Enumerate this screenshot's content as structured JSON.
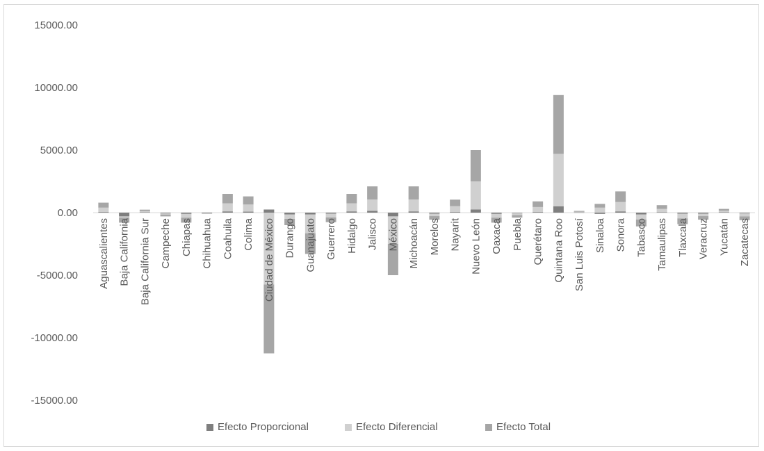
{
  "chart_data": {
    "type": "bar",
    "title": "",
    "xlabel": "",
    "ylabel": "",
    "ylim": [
      -15000,
      15000
    ],
    "yticks": [
      "15000.00",
      "10000.00",
      "5000.00",
      "0.00",
      "-5000.00",
      "-10000.00",
      "-15000.00"
    ],
    "ytick_values": [
      15000,
      10000,
      5000,
      0,
      -5000,
      -10000,
      -15000
    ],
    "categories": [
      "Aguascalientes",
      "Baja California",
      "Baja California Sur",
      "Campeche",
      "Chiapas",
      "Chihuahua",
      "Coahuila",
      "Colima",
      "Ciudad de México",
      "Durango",
      "Guanajuato",
      "Guerrero",
      "Hidalgo",
      "Jalisco",
      "México",
      "Michoacán",
      "Morelos",
      "Nayarit",
      "Nuevo León",
      "Oaxaca",
      "Puebla",
      "Querétaro",
      "Quintana Roo",
      "San Luis Potosí",
      "Sinaloa",
      "Sonora",
      "Tabasco",
      "Tamaulipas",
      "Tlaxcala",
      "Veracruz",
      "Yucatán",
      "Zacatecas"
    ],
    "series": [
      {
        "name": "Efecto Proporcional",
        "color": "#7f7f7f",
        "values": [
          50,
          -300,
          30,
          -50,
          -100,
          20,
          100,
          80,
          250,
          -150,
          -150,
          -80,
          100,
          150,
          -300,
          100,
          -80,
          50,
          250,
          -100,
          -40,
          50,
          500,
          20,
          -100,
          100,
          -150,
          40,
          -80,
          -80,
          40,
          -50
        ]
      },
      {
        "name": "Efecto Diferencial",
        "color": "#d0d0d0",
        "values": [
          350,
          -100,
          90,
          -100,
          -300,
          -60,
          650,
          570,
          -5750,
          -350,
          -1500,
          -300,
          650,
          900,
          -2200,
          950,
          -200,
          470,
          2250,
          -300,
          -160,
          400,
          4200,
          50,
          400,
          750,
          -400,
          260,
          -380,
          -200,
          110,
          -250
        ]
      },
      {
        "name": "Efecto Total",
        "color": "#a6a6a6",
        "values": [
          400,
          -400,
          120,
          -150,
          -400,
          -40,
          750,
          650,
          -5500,
          -500,
          -1650,
          -380,
          750,
          1050,
          -2500,
          1050,
          -280,
          520,
          2500,
          -400,
          -200,
          450,
          4700,
          70,
          300,
          850,
          -550,
          300,
          -460,
          -280,
          150,
          -300
        ]
      }
    ],
    "legend_position": "bottom",
    "grid": false
  }
}
